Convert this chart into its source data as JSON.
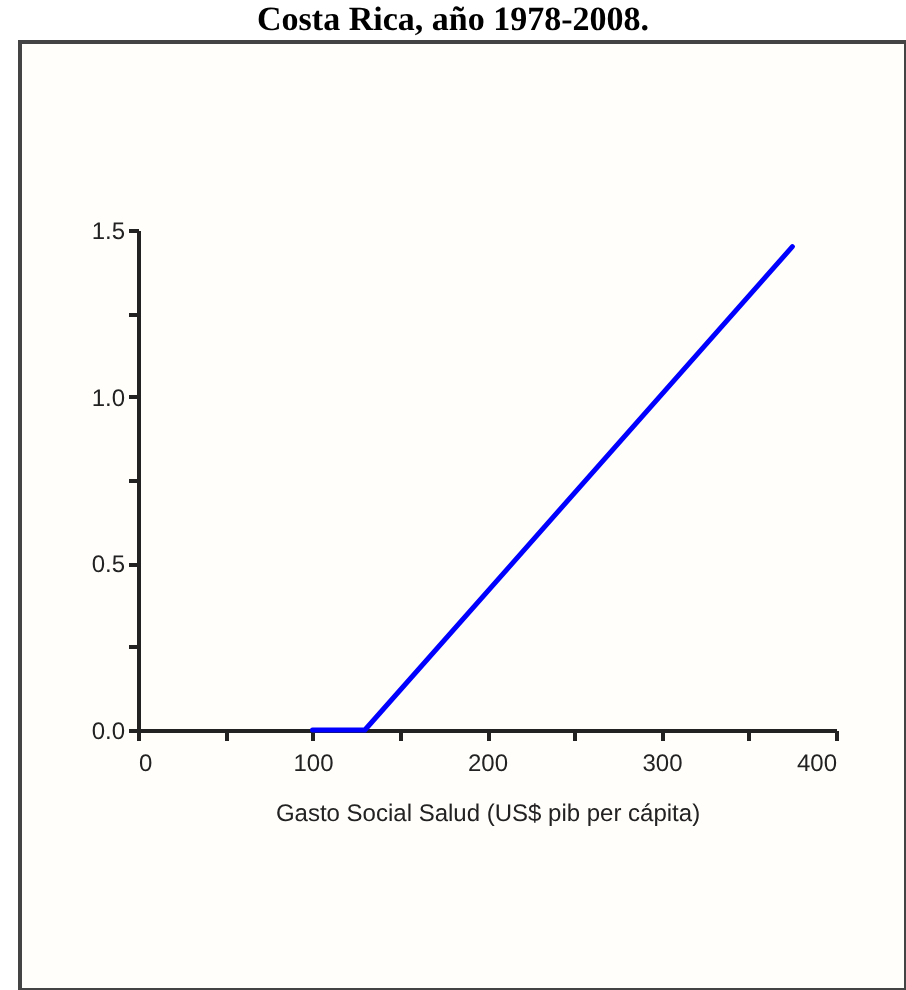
{
  "chart_data": {
    "type": "line",
    "title": "Costa Rica, año 1978-2008.",
    "xlabel": "Gasto Social Salud (US$ pib per cápita)",
    "x": [
      100,
      130,
      375
    ],
    "series": [
      {
        "color": "#0000ff",
        "values": [
          0,
          0,
          1.45
        ]
      }
    ],
    "xlim": [
      0,
      400
    ],
    "xticks": [
      0,
      {
        "value": 50,
        "label": null
      },
      100,
      {
        "value": 150,
        "label": null
      },
      200,
      {
        "value": 250,
        "label": null
      },
      300,
      {
        "value": 350,
        "label": null
      },
      400
    ],
    "ylim": [
      0,
      1.5
    ],
    "yticks": [
      {
        "value": 0,
        "label": "0.0"
      },
      {
        "value": 0.25,
        "label": null
      },
      {
        "value": 0.5,
        "label": "0.5"
      },
      {
        "value": 0.75,
        "label": null
      },
      {
        "value": 1,
        "label": "1.0"
      },
      {
        "value": 1.25,
        "label": null
      },
      {
        "value": 1.5,
        "label": "1.5"
      }
    ],
    "grid": false,
    "marker": "none",
    "line_style": "solid"
  }
}
